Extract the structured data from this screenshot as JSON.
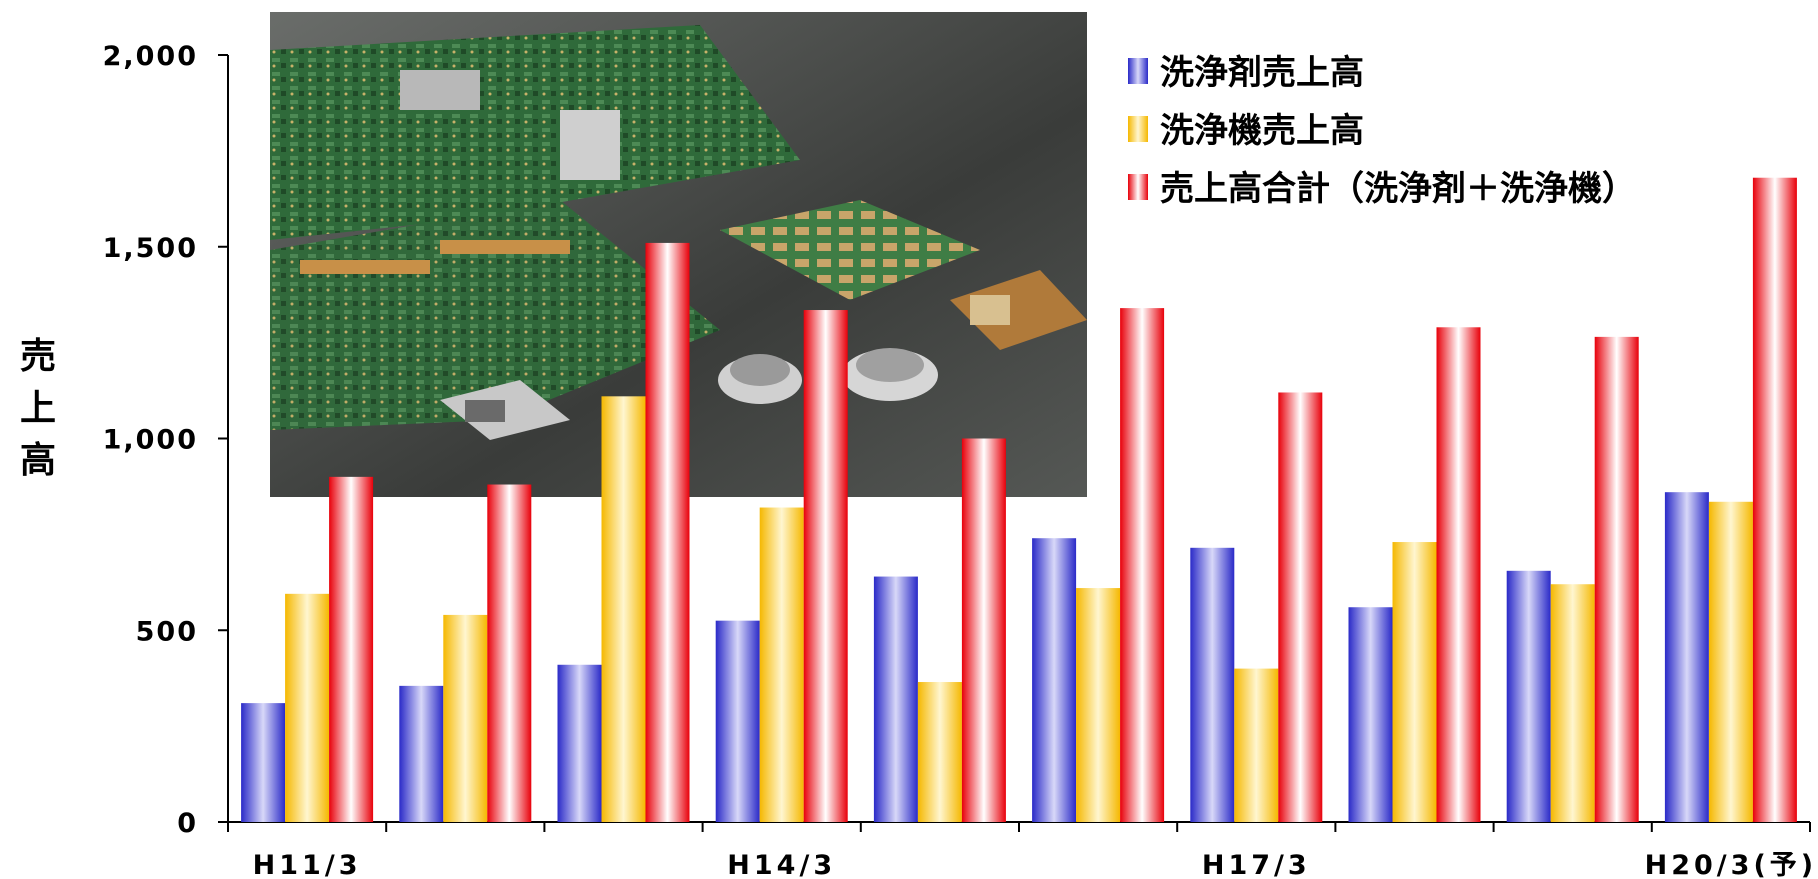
{
  "chart_data": {
    "type": "bar",
    "ylabel": "売上高",
    "xlabel": "",
    "title": "",
    "ylim": [
      0,
      2000
    ],
    "yticks": [
      "0",
      "500",
      "1,000",
      "1,500",
      "2,000"
    ],
    "ytick_values": [
      0,
      500,
      1000,
      1500,
      2000
    ],
    "categories": [
      "H11/3",
      "",
      "",
      "H14/3",
      "",
      "",
      "H17/3",
      "",
      "",
      "H20/3(予)"
    ],
    "grid": false,
    "legend_placement": "top-right",
    "series": [
      {
        "name": "洗浄剤売上高",
        "color": "#4a4ad6",
        "values": [
          310,
          355,
          410,
          525,
          640,
          740,
          715,
          560,
          655,
          860
        ]
      },
      {
        "name": "洗浄機売上高",
        "color": "#f5c420",
        "values": [
          595,
          540,
          1110,
          820,
          365,
          610,
          400,
          730,
          620,
          835
        ]
      },
      {
        "name": "売上高合計（洗浄剤＋洗浄機）",
        "color": "#ee1c24",
        "values": [
          900,
          880,
          1510,
          1335,
          1000,
          1340,
          1120,
          1290,
          1265,
          1680
        ]
      }
    ]
  },
  "photo": {
    "icon": "circuit-board-photo-icon"
  }
}
